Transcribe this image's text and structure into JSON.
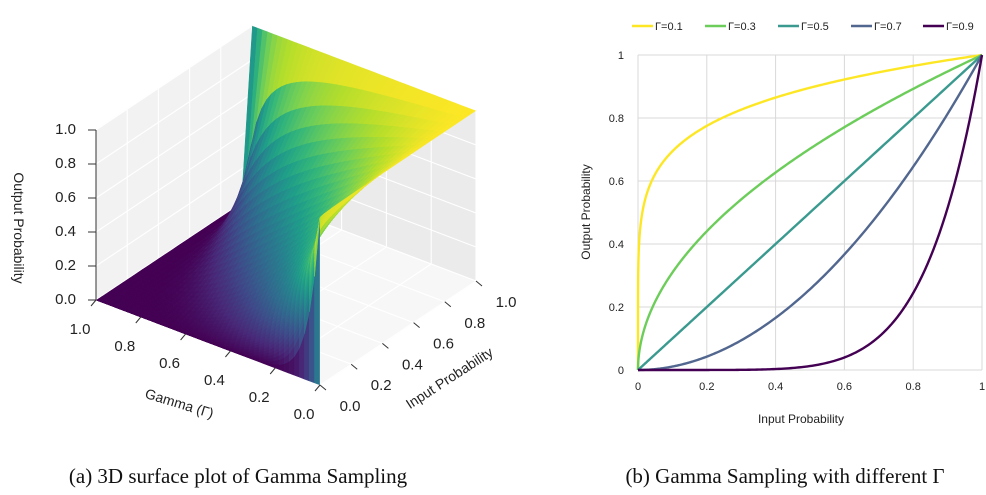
{
  "chart_data": [
    {
      "type": "surface",
      "title": "",
      "caption": "(a) 3D surface plot of Gamma Sampling",
      "xlabel": "Input Probability",
      "ylabel": "Gamma (Γ)",
      "zlabel": "Output Probability",
      "xlim": [
        0,
        1
      ],
      "ylim": [
        0,
        1
      ],
      "zlim": [
        0,
        1
      ],
      "x_ticks": [
        "0.0",
        "0.2",
        "0.4",
        "0.6",
        "0.8",
        "1.0"
      ],
      "y_ticks": [
        "0.0",
        "0.2",
        "0.4",
        "0.6",
        "0.8",
        "1.0"
      ],
      "z_ticks": [
        "0.0",
        "0.2",
        "0.4",
        "0.6",
        "0.8",
        "1.0"
      ],
      "surface_function": "z = x ^ tan(π·Γ/2)",
      "colormap": "viridis",
      "grid": true
    },
    {
      "type": "line",
      "title": "",
      "caption": "(b) Gamma Sampling with different Γ",
      "xlabel": "Input Probability",
      "ylabel": "Output Probability",
      "xlim": [
        0,
        1
      ],
      "ylim": [
        0,
        1
      ],
      "x_ticks": [
        "0",
        "0.2",
        "0.4",
        "0.6",
        "0.8",
        "1"
      ],
      "y_ticks": [
        "0",
        "0.2",
        "0.4",
        "0.6",
        "0.8",
        "1"
      ],
      "legend_position": "top",
      "grid": true,
      "series": [
        {
          "name": "Γ=0.1",
          "gamma": 0.1,
          "color": "#fde725",
          "x": [
            0,
            0.001,
            0.01,
            0.05,
            0.1,
            0.2,
            0.3,
            0.4,
            0.5,
            0.6,
            0.7,
            0.8,
            0.9,
            1.0
          ],
          "y": [
            0,
            0.334,
            0.482,
            0.622,
            0.694,
            0.775,
            0.826,
            0.865,
            0.896,
            0.922,
            0.945,
            0.965,
            0.983,
            1.0
          ]
        },
        {
          "name": "Γ=0.3",
          "gamma": 0.3,
          "color": "#6ccd5a",
          "x": [
            0,
            0.01,
            0.05,
            0.1,
            0.2,
            0.3,
            0.4,
            0.5,
            0.6,
            0.7,
            0.8,
            0.9,
            1.0
          ],
          "y": [
            0,
            0.096,
            0.22,
            0.31,
            0.441,
            0.542,
            0.628,
            0.704,
            0.773,
            0.836,
            0.895,
            0.949,
            1.0
          ]
        },
        {
          "name": "Γ=0.5",
          "gamma": 0.5,
          "color": "#3a9a8f",
          "x": [
            0,
            0.2,
            0.4,
            0.6,
            0.8,
            1.0
          ],
          "y": [
            0,
            0.2,
            0.4,
            0.6,
            0.8,
            1.0
          ]
        },
        {
          "name": "Γ=0.7",
          "gamma": 0.7,
          "color": "#52678f",
          "x": [
            0,
            0.1,
            0.2,
            0.3,
            0.4,
            0.5,
            0.6,
            0.7,
            0.8,
            0.9,
            1.0
          ],
          "y": [
            0,
            0.042,
            0.109,
            0.191,
            0.283,
            0.386,
            0.495,
            0.612,
            0.735,
            0.865,
            1.0
          ]
        },
        {
          "name": "Γ=0.9",
          "gamma": 0.9,
          "color": "#440154",
          "x": [
            0,
            0.2,
            0.4,
            0.5,
            0.6,
            0.7,
            0.8,
            0.85,
            0.9,
            0.95,
            1.0
          ],
          "y": [
            0,
            0.0,
            0.0003,
            0.0063,
            0.04,
            0.105,
            0.244,
            0.358,
            0.514,
            0.723,
            1.0
          ]
        }
      ]
    }
  ]
}
